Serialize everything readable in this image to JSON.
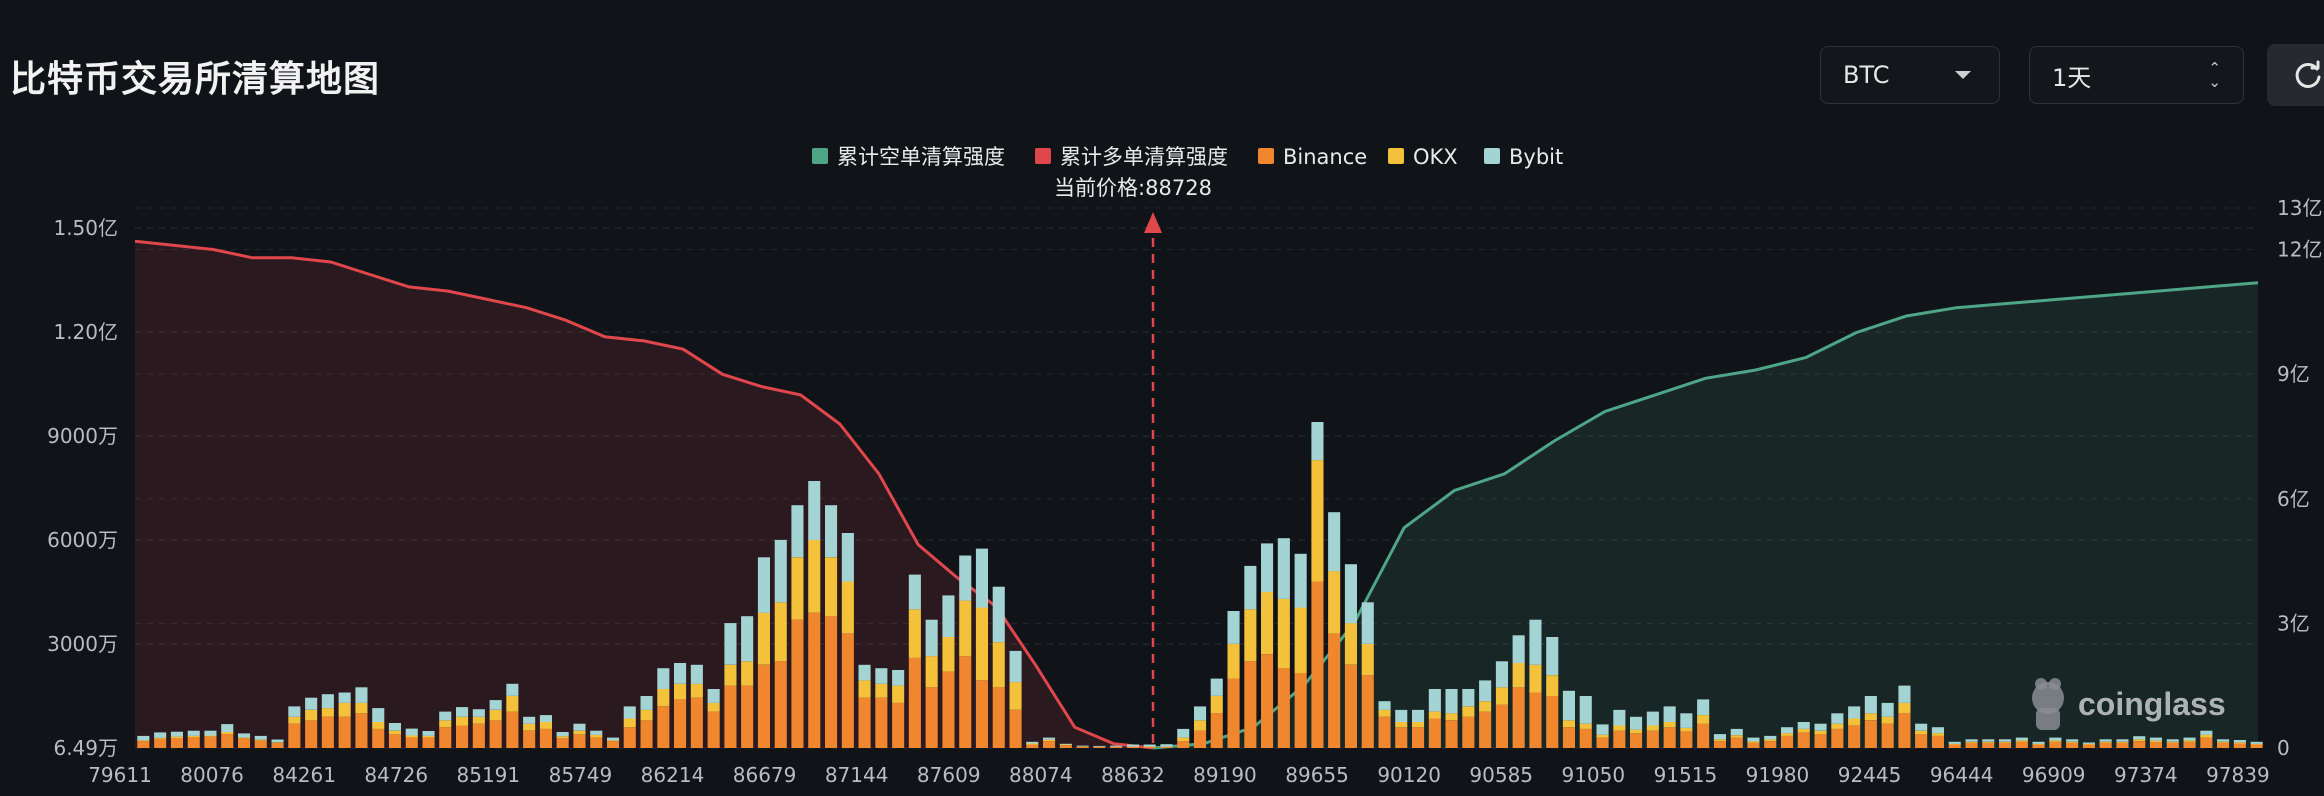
{
  "header": {
    "title": "比特币交易所清算地图",
    "coin_select": "BTC",
    "period_select": "1天"
  },
  "colors": {
    "background": "#101317",
    "short_cum": "#4ea687",
    "long_cum": "#e0474c",
    "binance": "#f0862e",
    "okx": "#f3c13a",
    "bybit": "#a3d3d3",
    "price_line": "#e0474c"
  },
  "icons": {
    "refresh": "refresh-icon",
    "watermark": "coinglass-logo"
  },
  "watermark": {
    "text": "coinglass"
  },
  "chart_data": {
    "type": "bar",
    "legend": [
      {
        "name": "累计空单清算强度",
        "color": "#4ea687"
      },
      {
        "name": "累计多单清算强度",
        "color": "#e0474c"
      },
      {
        "name": "Binance",
        "color": "#f0862e"
      },
      {
        "name": "OKX",
        "color": "#f3c13a"
      },
      {
        "name": "Bybit",
        "color": "#a3d3d3"
      }
    ],
    "current_price_label": "当前价格:88728",
    "current_price": 88728,
    "x_tick_labels": [
      "79611",
      "80076",
      "84261",
      "84726",
      "85191",
      "85749",
      "86214",
      "86679",
      "87144",
      "87609",
      "88074",
      "88632",
      "89190",
      "89655",
      "90120",
      "90585",
      "91050",
      "91515",
      "91980",
      "92445",
      "96444",
      "96909",
      "97374",
      "97839"
    ],
    "left_axis": {
      "unit": "万",
      "tick_labels": [
        "6.49万",
        "3000万",
        "6000万",
        "9000万",
        "1.20亿",
        "1.50亿"
      ],
      "tick_values": [
        6.49,
        3000,
        6000,
        9000,
        12000,
        15000
      ],
      "ylim": [
        6.49,
        15000
      ]
    },
    "right_axis": {
      "unit": "亿",
      "tick_labels": [
        "0",
        "3亿",
        "6亿",
        "9亿",
        "12亿",
        "13亿"
      ],
      "tick_values": [
        0,
        3,
        6,
        9,
        12,
        13
      ],
      "ylim": [
        0,
        13
      ]
    },
    "series": [
      {
        "name": "Binance",
        "axis": "left",
        "values": [
          200,
          260,
          290,
          310,
          330,
          400,
          280,
          220,
          150,
          700,
          800,
          900,
          900,
          1000,
          550,
          400,
          300,
          300,
          600,
          650,
          700,
          800,
          1050,
          500,
          550,
          280,
          400,
          300,
          200,
          600,
          800,
          1200,
          1400,
          1450,
          1050,
          1800,
          1800,
          2400,
          2500,
          3700,
          3900,
          3800,
          3300,
          1450,
          1450,
          1300,
          2600,
          1750,
          2200,
          2650,
          1950,
          1750,
          1100,
          100,
          200,
          80,
          40,
          30,
          30,
          30,
          30,
          30,
          200,
          500,
          1000,
          2000,
          2500,
          2700,
          2300,
          2150,
          4800,
          3300,
          2400,
          2100,
          900,
          600,
          600,
          850,
          800,
          900,
          1050,
          1250,
          1750,
          1600,
          1500,
          600,
          550,
          300,
          500,
          430,
          500,
          600,
          480,
          700,
          200,
          300,
          150,
          200,
          350,
          450,
          400,
          550,
          650,
          800,
          700,
          1000,
          400,
          350,
          100,
          150,
          150,
          150,
          180,
          100,
          180,
          150,
          100,
          150,
          150,
          200,
          170,
          150,
          180,
          300,
          150,
          130,
          100
        ]
      },
      {
        "name": "OKX",
        "axis": "left",
        "values": [
          20,
          30,
          40,
          40,
          30,
          60,
          20,
          20,
          15,
          200,
          300,
          250,
          400,
          300,
          200,
          100,
          60,
          50,
          200,
          250,
          200,
          300,
          450,
          200,
          200,
          60,
          100,
          80,
          20,
          250,
          300,
          500,
          450,
          400,
          250,
          600,
          700,
          1500,
          1700,
          1800,
          2100,
          1700,
          1500,
          500,
          400,
          500,
          1400,
          900,
          1000,
          1600,
          2100,
          1300,
          800,
          30,
          40,
          20,
          10,
          10,
          10,
          10,
          10,
          10,
          100,
          300,
          500,
          1000,
          1500,
          1800,
          2000,
          1900,
          3500,
          1800,
          1200,
          900,
          200,
          150,
          150,
          200,
          200,
          300,
          300,
          500,
          700,
          800,
          600,
          200,
          150,
          80,
          150,
          100,
          150,
          150,
          100,
          250,
          50,
          70,
          40,
          50,
          80,
          100,
          100,
          150,
          200,
          200,
          200,
          300,
          100,
          80,
          20,
          30,
          30,
          30,
          40,
          20,
          40,
          30,
          20,
          30,
          30,
          50,
          40,
          30,
          40,
          80,
          30,
          30,
          20
        ]
      },
      {
        "name": "Bybit",
        "axis": "left",
        "values": [
          130,
          160,
          140,
          150,
          140,
          230,
          120,
          110,
          80,
          300,
          350,
          400,
          300,
          450,
          400,
          220,
          200,
          140,
          250,
          280,
          220,
          280,
          350,
          200,
          200,
          120,
          200,
          120,
          80,
          350,
          400,
          600,
          600,
          550,
          400,
          1200,
          1300,
          1600,
          1800,
          1500,
          1700,
          1500,
          1400,
          450,
          450,
          450,
          1000,
          1050,
          1200,
          1300,
          1700,
          1600,
          900,
          50,
          60,
          20,
          20,
          20,
          30,
          60,
          60,
          70,
          250,
          400,
          500,
          950,
          1250,
          1400,
          1750,
          1550,
          1100,
          1700,
          1700,
          1200,
          250,
          350,
          350,
          650,
          700,
          500,
          600,
          750,
          800,
          1300,
          1100,
          850,
          800,
          300,
          450,
          370,
          400,
          450,
          420,
          450,
          150,
          180,
          110,
          100,
          170,
          200,
          200,
          300,
          350,
          500,
          400,
          500,
          200,
          170,
          60,
          70,
          70,
          70,
          80,
          60,
          80,
          70,
          40,
          70,
          70,
          90,
          90,
          70,
          80,
          120,
          70,
          70,
          60
        ]
      },
      {
        "name": "累计多单清算强度",
        "axis": "right",
        "x_range": [
          "79611",
          "88632"
        ],
        "values": [
          12.2,
          12.1,
          12.0,
          11.8,
          11.8,
          11.7,
          11.4,
          11.1,
          11.0,
          10.8,
          10.6,
          10.3,
          9.9,
          9.8,
          9.6,
          9.0,
          8.7,
          8.5,
          7.8,
          6.6,
          4.9,
          4.1,
          3.4,
          2.0,
          0.5,
          0.1,
          0.0
        ]
      },
      {
        "name": "累计空单清算强度",
        "axis": "right",
        "x_range": [
          "88632",
          "97839"
        ],
        "values": [
          0.0,
          0.1,
          0.5,
          1.5,
          3.0,
          5.3,
          6.2,
          6.6,
          7.4,
          8.1,
          8.5,
          8.9,
          9.1,
          9.4,
          10.0,
          10.4,
          10.6,
          10.7,
          10.8,
          10.9,
          11.0,
          11.1,
          11.2
        ]
      }
    ]
  }
}
